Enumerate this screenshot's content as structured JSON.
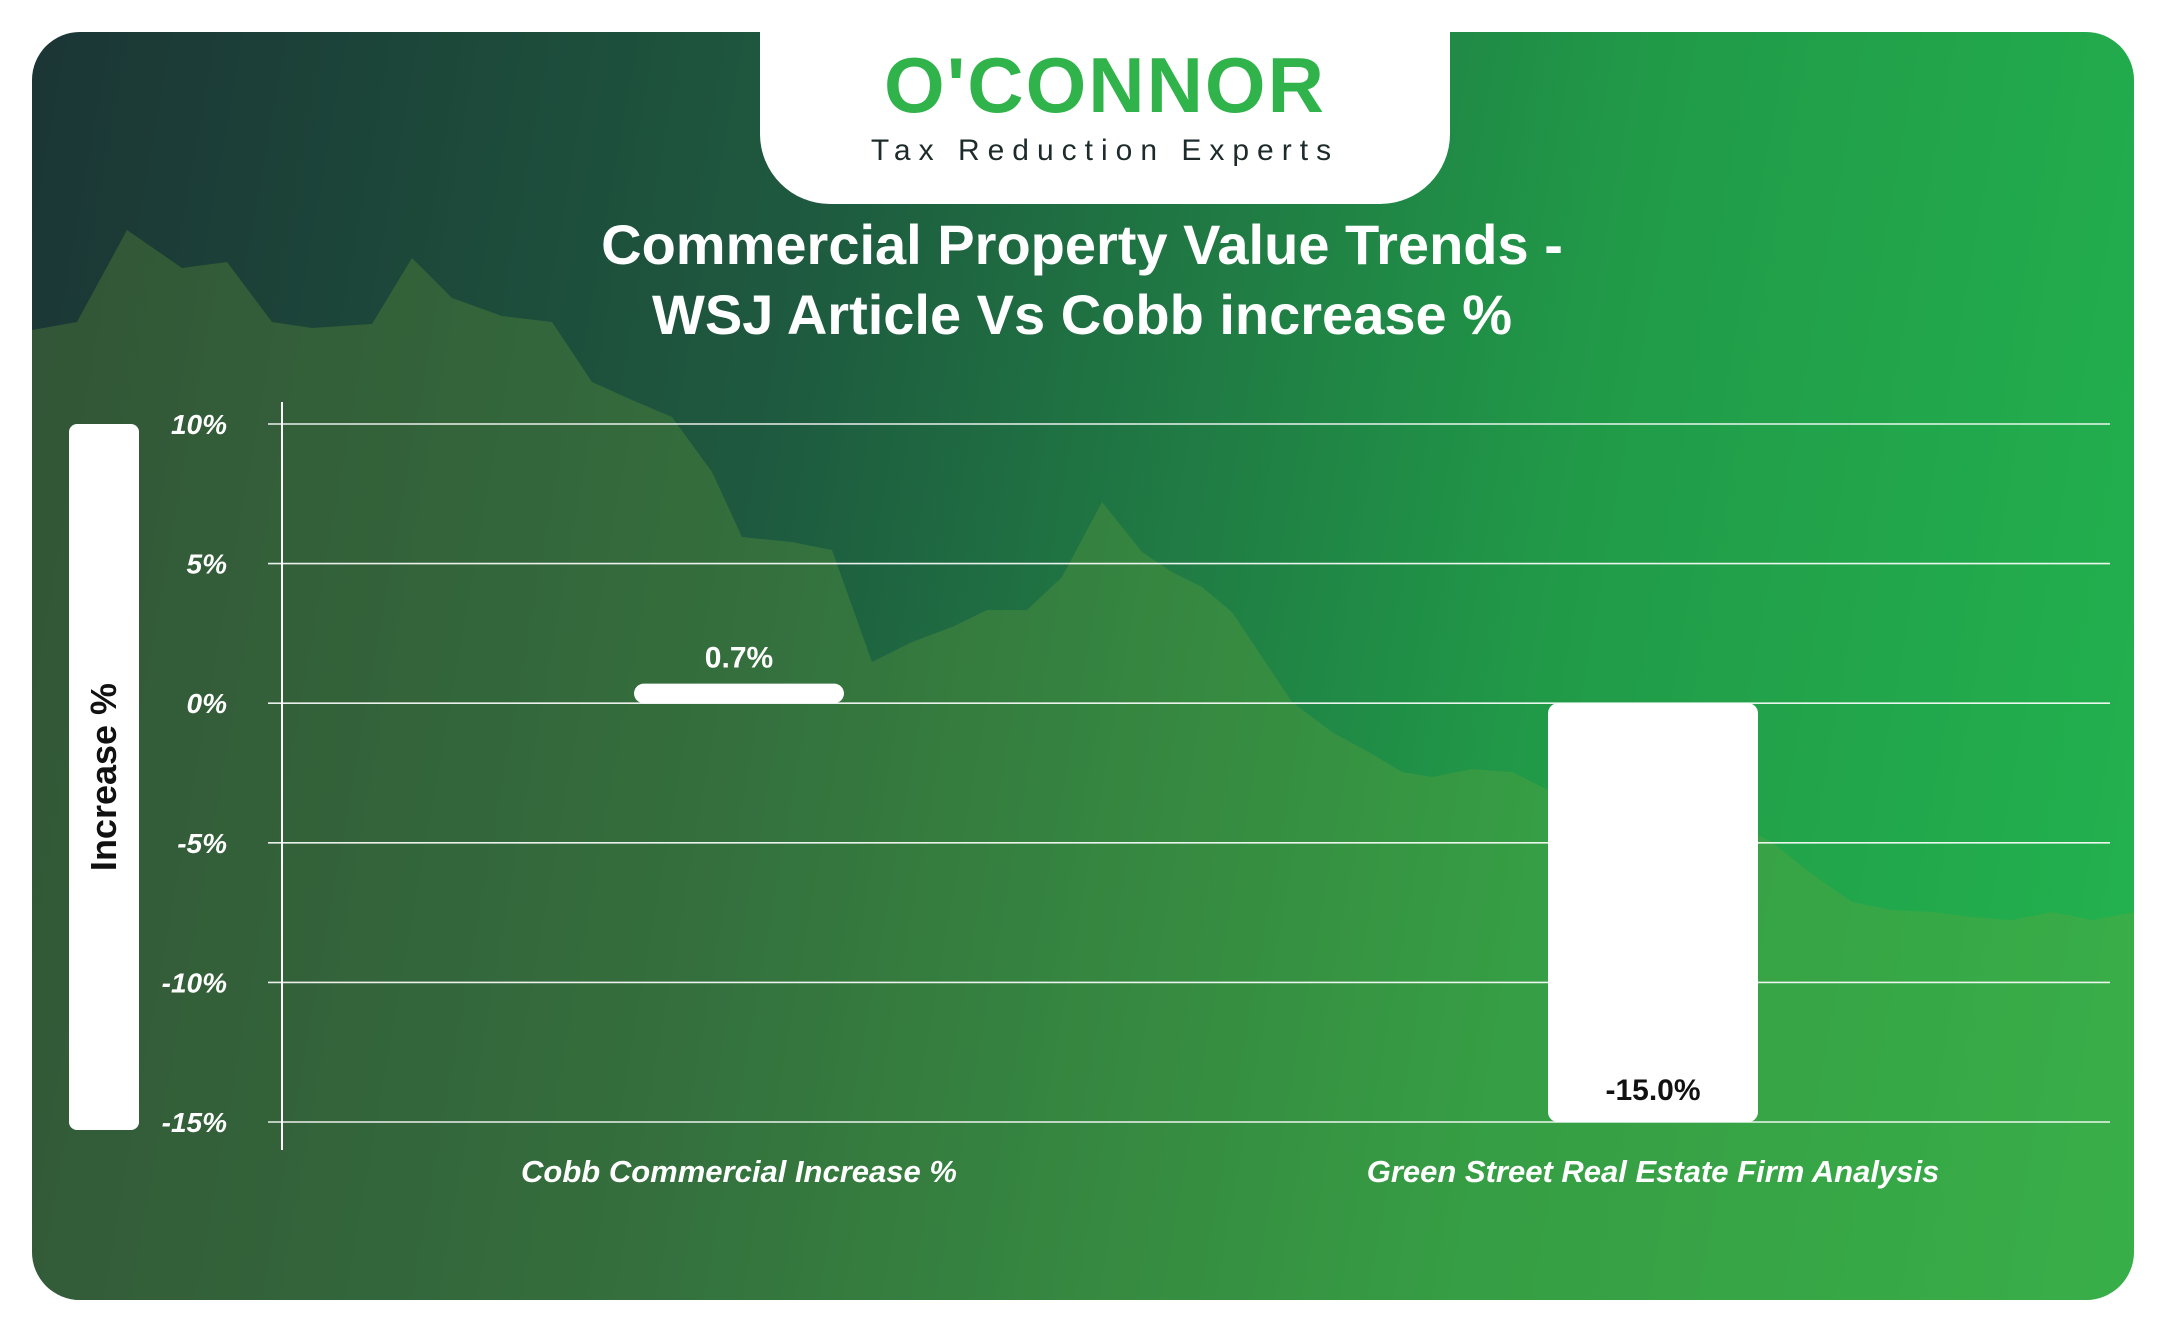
{
  "logo": {
    "name": "O'CONNOR",
    "tagline": "Tax Reduction Experts"
  },
  "chart_data": {
    "type": "bar",
    "title_line1": "Commercial Property Value Trends -",
    "title_line2": "WSJ Article Vs Cobb increase %",
    "ylabel": "Increase %",
    "xlabel": "",
    "categories": [
      "Cobb Commercial Increase %",
      "Green Street Real Estate Firm Analysis"
    ],
    "values": [
      0.7,
      -15.0
    ],
    "value_labels": [
      "0.7%",
      "-15.0%"
    ],
    "ylim": [
      -15,
      10
    ],
    "yticks": [
      10,
      5,
      0,
      -5,
      -10,
      -15
    ],
    "ytick_labels": [
      "10%",
      "5%",
      "0%",
      "-5%",
      "-10%",
      "-15%"
    ],
    "grid": true,
    "legend": "none"
  },
  "colors": {
    "bar": "#ffffff",
    "brand_green": "#2fb34a",
    "background_dark": "#1b3535",
    "background_light": "#23b34f"
  }
}
